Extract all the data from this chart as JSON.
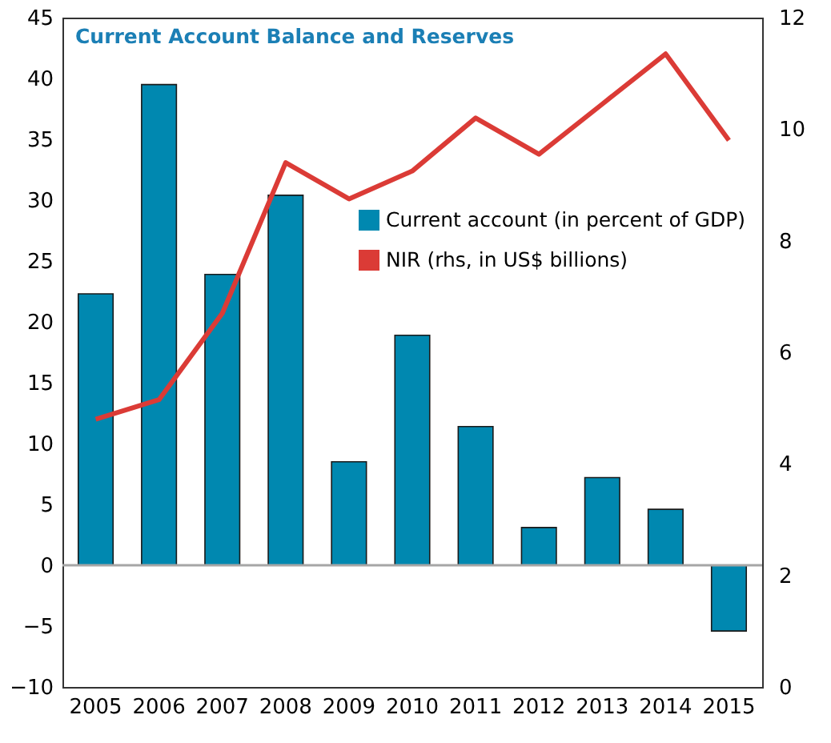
{
  "chart_data": {
    "type": "bar",
    "title": "Current Account Balance  and Reserves",
    "categories": [
      "2005",
      "2006",
      "2007",
      "2008",
      "2009",
      "2010",
      "2011",
      "2012",
      "2013",
      "2014",
      "2015"
    ],
    "series": [
      {
        "name": "Current account (in percent of GDP)",
        "color": "#0088b0",
        "values": [
          22.3,
          39.5,
          23.9,
          30.4,
          8.5,
          18.9,
          11.4,
          3.1,
          7.2,
          4.6,
          -5.4
        ]
      },
      {
        "name": "NIR (rhs, in US$ billions)",
        "color": "#db3b36",
        "type": "line",
        "axis": "y2",
        "values": [
          4.8,
          5.15,
          6.7,
          9.4,
          8.75,
          9.25,
          10.2,
          9.55,
          10.45,
          11.35,
          9.8
        ]
      }
    ],
    "ylim": [
      -10,
      45
    ],
    "yticks": [
      -10,
      -5,
      0,
      5,
      10,
      15,
      20,
      25,
      30,
      35,
      40,
      45
    ],
    "y2lim": [
      0,
      12
    ],
    "y2ticks": [
      0,
      2,
      4,
      6,
      8,
      10,
      12
    ],
    "ref_lines": [
      {
        "axis": "y",
        "value": 0,
        "color": "#a6a6a6"
      }
    ],
    "grid": false,
    "legend": "right",
    "marker": "none",
    "line_style": "solid"
  }
}
